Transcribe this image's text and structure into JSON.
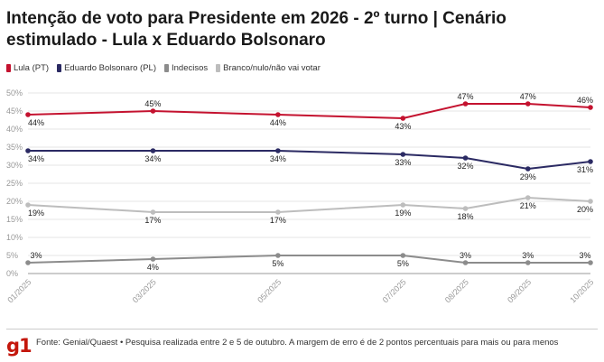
{
  "title": "Intenção de voto para Presidente em 2026 - 2º turno | Cenário estimulado - Lula x Eduardo Bolsonaro",
  "source": "Fonte: Genial/Quaest • Pesquisa realizada entre 2 e 5 de outubro. A margem de erro é de 2 pontos percentuais para mais ou para menos",
  "logo": "g1",
  "chart_data": {
    "type": "line",
    "x": [
      "01/2025",
      "03/2025",
      "05/2025",
      "07/2025",
      "08/2025",
      "09/2025",
      "10/2025"
    ],
    "x_months": [
      1,
      3,
      5,
      7,
      8,
      9,
      10
    ],
    "ylim": [
      0,
      50
    ],
    "yticks": [
      0,
      5,
      10,
      15,
      20,
      25,
      30,
      35,
      40,
      45,
      50
    ],
    "ytick_suffix": "%",
    "grid": true,
    "series": [
      {
        "name": "Lula (PT)",
        "color": "#c4122f",
        "values": [
          44,
          45,
          44,
          43,
          47,
          47,
          46
        ],
        "label_pos": [
          "below",
          "above",
          "below",
          "below",
          "above",
          "above",
          "above"
        ]
      },
      {
        "name": "Eduardo Bolsonaro (PL)",
        "color": "#2b2a63",
        "values": [
          34,
          34,
          34,
          33,
          32,
          29,
          31
        ],
        "label_pos": [
          "below",
          "below",
          "below",
          "below",
          "below",
          "below",
          "below"
        ]
      },
      {
        "name": "Indecisos",
        "color": "#8c8c8c",
        "values": [
          3,
          4,
          5,
          5,
          3,
          3,
          3
        ],
        "label_pos": [
          "above",
          "below",
          "below",
          "below",
          "above",
          "above",
          "above"
        ]
      },
      {
        "name": "Branco/nulo/não vai votar",
        "color": "#bdbdbd",
        "values": [
          19,
          17,
          17,
          19,
          18,
          21,
          20
        ],
        "label_pos": [
          "below",
          "below",
          "below",
          "below",
          "below",
          "below",
          "below"
        ]
      }
    ]
  }
}
